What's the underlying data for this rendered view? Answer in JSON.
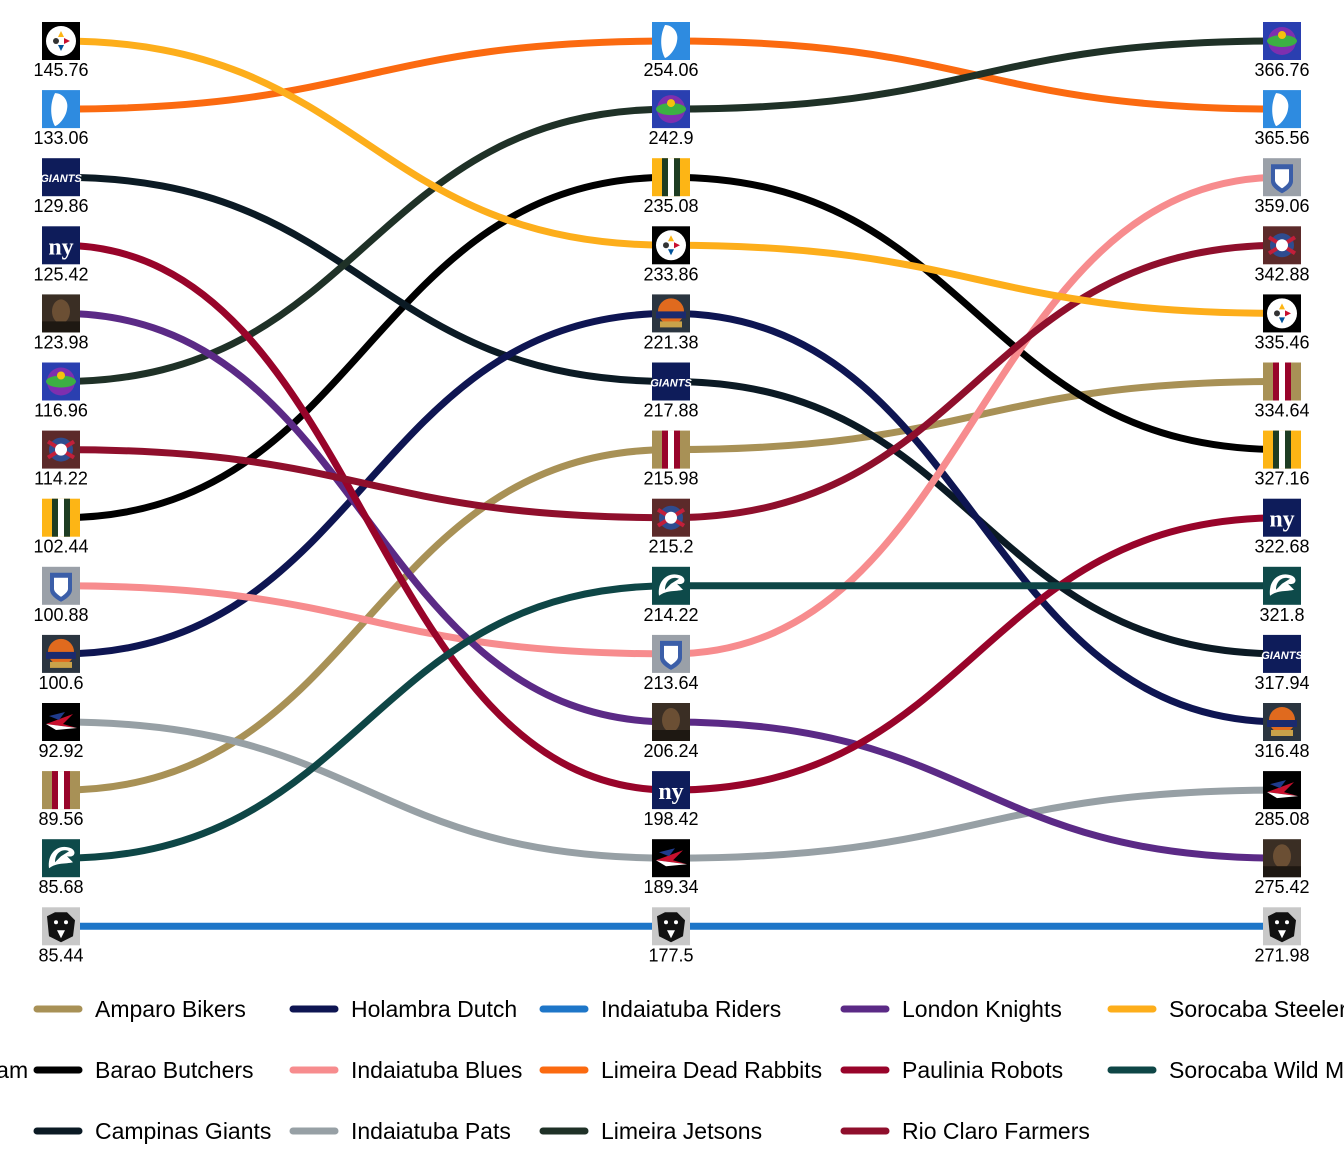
{
  "chart_data": {
    "type": "bump",
    "title": "",
    "xlabel": "",
    "ylabel": "",
    "grid": false,
    "legend_position": "bottom",
    "legend_title": "Team",
    "x": [
      1,
      2,
      3
    ],
    "series": [
      {
        "name": "Amparo Bikers",
        "color": "#A89156",
        "icon": "gold-red-stripes-icon",
        "values": [
          89.56,
          215.98,
          334.64
        ]
      },
      {
        "name": "Barao Butchers",
        "color": "#000000",
        "icon": "green-gold-stripes-icon",
        "values": [
          102.44,
          235.08,
          327.16
        ]
      },
      {
        "name": "Campinas Giants",
        "color": "#0B1A24",
        "icon": "giants-wordmark-icon",
        "values": [
          129.86,
          217.88,
          317.94
        ]
      },
      {
        "name": "Holambra Dutch",
        "color": "#0E1552",
        "icon": "dutch-badge-icon",
        "values": [
          100.6,
          221.38,
          316.48
        ]
      },
      {
        "name": "Indaiatuba Blues",
        "color": "#F78C8E",
        "icon": "blues-badge-icon",
        "values": [
          100.88,
          213.64,
          359.06
        ]
      },
      {
        "name": "Indaiatuba Pats",
        "color": "#97A0A5",
        "icon": "pats-helmet-icon",
        "values": [
          92.92,
          189.34,
          285.08
        ]
      },
      {
        "name": "Indaiatuba Riders",
        "color": "#1E76C8",
        "icon": "panther-head-icon",
        "values": [
          85.44,
          177.5,
          271.98
        ]
      },
      {
        "name": "Limeira Dead Rabbits",
        "color": "#FB6A10",
        "icon": "map-silhouette-icon",
        "values": [
          133.06,
          254.06,
          365.56
        ]
      },
      {
        "name": "Limeira Jetsons",
        "color": "#1F3127",
        "icon": "jetsons-logo-icon",
        "values": [
          116.96,
          242.9,
          366.76
        ]
      },
      {
        "name": "London Knights",
        "color": "#5B2A86",
        "icon": "knight-portrait-icon",
        "values": [
          123.98,
          206.24,
          275.42
        ]
      },
      {
        "name": "Paulinia Robots",
        "color": "#98042A",
        "icon": "ny-logo-icon",
        "values": [
          125.42,
          198.42,
          322.68
        ]
      },
      {
        "name": "Rio Claro Farmers",
        "color": "#8F0F2C",
        "icon": "farmers-badge-icon",
        "values": [
          114.22,
          215.2,
          342.88
        ]
      },
      {
        "name": "Sorocaba Steelers",
        "color": "#FDAE1B",
        "icon": "steelers-logo-icon",
        "values": [
          145.76,
          233.86,
          335.46
        ]
      },
      {
        "name": "Sorocaba Wild Mustangs",
        "color": "#0E4646",
        "icon": "eagle-head-icon",
        "values": [
          85.68,
          214.22,
          321.8
        ]
      }
    ],
    "legend_rows": [
      [
        "Amparo Bikers",
        "Holambra Dutch",
        "Indaiatuba Riders",
        "London Knights",
        "Sorocaba Steelers"
      ],
      [
        "Barao Butchers",
        "Indaiatuba Blues",
        "Limeira Dead Rabbits",
        "Paulinia Robots",
        "Sorocaba Wild Mustangs"
      ],
      [
        "Campinas Giants",
        "Indaiatuba Pats",
        "Limeira Jetsons",
        "Rio Claro Farmers"
      ]
    ]
  }
}
